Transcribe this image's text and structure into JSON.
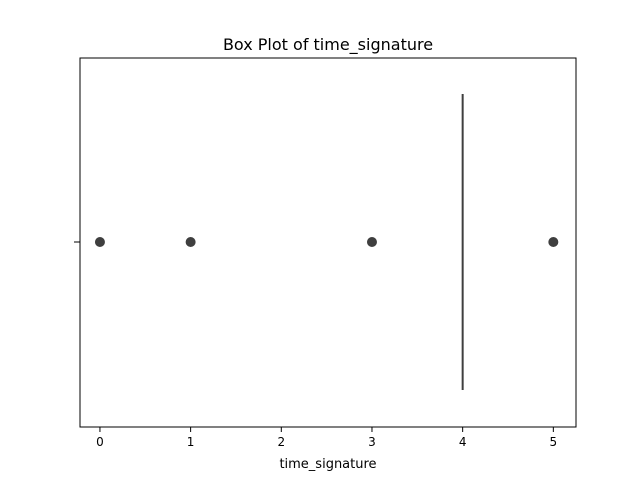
{
  "chart_data": {
    "type": "box",
    "title": "Box Plot of time_signature",
    "xlabel": "time_signature",
    "ylabel": "",
    "xlim": [
      -0.22,
      5.25
    ],
    "xticks": [
      0,
      1,
      2,
      3,
      4,
      5
    ],
    "xtick_labels": [
      "0",
      "1",
      "2",
      "3",
      "4",
      "5"
    ],
    "orientation": "horizontal",
    "box": {
      "min": 4,
      "q1": 4,
      "median": 4,
      "q3": 4,
      "max": 4
    },
    "outliers": [
      0,
      1,
      3,
      5
    ],
    "grid": false,
    "colors": {
      "box_line": "#3f3f3f",
      "outlier_fill": "#3f3f3f",
      "axes": "#000000",
      "background": "#ffffff"
    }
  }
}
